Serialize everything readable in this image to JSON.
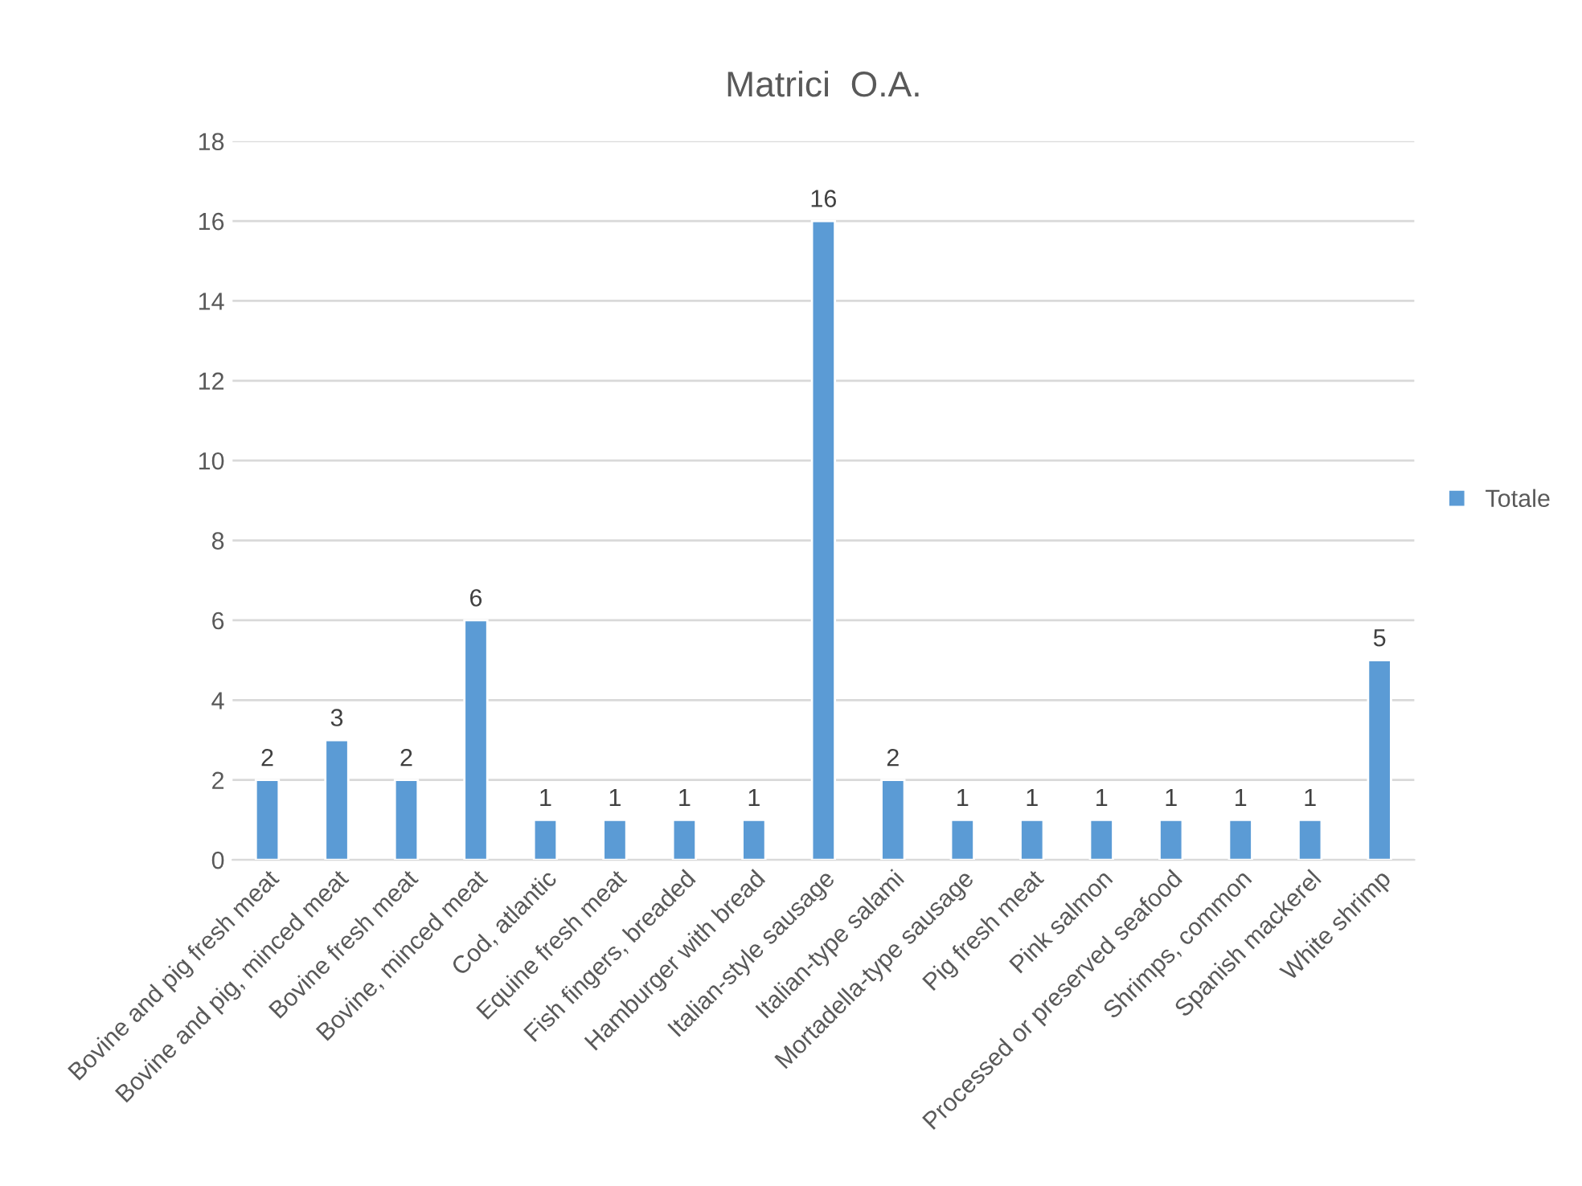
{
  "chart_data": {
    "type": "bar",
    "title": "Matrici  O.A.",
    "categories": [
      "Bovine and pig fresh meat",
      "Bovine and pig, minced meat",
      "Bovine fresh meat",
      "Bovine, minced meat",
      "Cod, atlantic",
      "Equine fresh meat",
      "Fish fingers, breaded",
      "Hamburger with bread",
      "Italian-style sausage",
      "Italian-type salami",
      "Mortadella-type sausage",
      "Pig fresh meat",
      "Pink salmon",
      "Processed or preserved seafood",
      "Shrimps, common",
      "Spanish mackerel",
      "White shrimp"
    ],
    "series": [
      {
        "name": "Totale",
        "color": "#5b9bd5",
        "values": [
          2,
          3,
          2,
          6,
          1,
          1,
          1,
          1,
          16,
          2,
          1,
          1,
          1,
          1,
          1,
          1,
          5
        ]
      }
    ],
    "ylim": [
      0,
      18
    ],
    "yticks": [
      0,
      2,
      4,
      6,
      8,
      10,
      12,
      14,
      16,
      18
    ],
    "grid": "y",
    "legend": "right",
    "data_labels": true
  }
}
